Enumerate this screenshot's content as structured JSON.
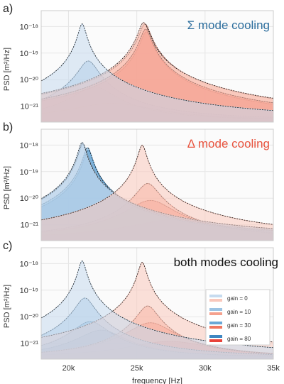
{
  "chart_data": [
    {
      "type": "area",
      "panel_label": "a)",
      "title": "Σ mode cooling",
      "title_color": "#2E6F9E",
      "xlabel": "",
      "ylabel": "PSD [m²/Hz]",
      "xlim": [
        18000,
        35000
      ],
      "ylim_log10": [
        -21.6,
        -17.4
      ],
      "y_scale": "log",
      "grid": true,
      "series": [
        {
          "group": "blue",
          "gain": 0,
          "center": 21000,
          "peak_log10": -17.9,
          "width": 250
        },
        {
          "group": "blue",
          "gain": 10,
          "center": 21450,
          "peak_log10": -19.3,
          "width": 600
        },
        {
          "group": "blue",
          "gain": 30,
          "center": 21900,
          "peak_log10": -20.3,
          "width": 1300
        },
        {
          "group": "blue",
          "gain": 80,
          "center": 23200,
          "peak_log10": -21.0,
          "width": 3000
        },
        {
          "group": "red",
          "gain": 0,
          "center": 25500,
          "peak_log10": -17.85,
          "width": 330
        },
        {
          "group": "red",
          "gain": 10,
          "center": 25600,
          "peak_log10": -17.9,
          "width": 340
        },
        {
          "group": "red",
          "gain": 30,
          "center": 25650,
          "peak_log10": -18.1,
          "width": 340
        },
        {
          "group": "red",
          "gain": 80,
          "center": 25700,
          "peak_log10": -18.2,
          "width": 350
        }
      ]
    },
    {
      "type": "area",
      "panel_label": "b)",
      "title": "Δ mode cooling",
      "title_color": "#E8533E",
      "xlabel": "",
      "ylabel": "PSD [m²/Hz]",
      "xlim": [
        18000,
        35000
      ],
      "ylim_log10": [
        -21.6,
        -17.4
      ],
      "y_scale": "log",
      "grid": true,
      "series": [
        {
          "group": "blue",
          "gain": 0,
          "center": 21000,
          "peak_log10": -17.9,
          "width": 260
        },
        {
          "group": "blue",
          "gain": 10,
          "center": 21050,
          "peak_log10": -17.95,
          "width": 270
        },
        {
          "group": "blue",
          "gain": 30,
          "center": 21400,
          "peak_log10": -18.1,
          "width": 280
        },
        {
          "group": "blue",
          "gain": 80,
          "center": 21450,
          "peak_log10": -18.2,
          "width": 290
        },
        {
          "group": "red",
          "gain": 0,
          "center": 25400,
          "peak_log10": -18.0,
          "width": 260
        },
        {
          "group": "red",
          "gain": 10,
          "center": 25800,
          "peak_log10": -19.45,
          "width": 700
        },
        {
          "group": "red",
          "gain": 30,
          "center": 26000,
          "peak_log10": -20.1,
          "width": 1400
        },
        {
          "group": "red",
          "gain": 80,
          "center": 27900,
          "peak_log10": -20.9,
          "width": 3200
        }
      ]
    },
    {
      "type": "area",
      "panel_label": "c)",
      "title": "both modes cooling",
      "title_color": "#111111",
      "xlabel": "frequency [Hz]",
      "ylabel": "PSD [m²/Hz]",
      "xlim": [
        18000,
        35000
      ],
      "ylim_log10": [
        -21.6,
        -17.4
      ],
      "y_scale": "log",
      "grid": true,
      "x_ticks": [
        "20k",
        "25k",
        "30k",
        "35k"
      ],
      "y_ticks": [
        "10⁻¹⁸",
        "10⁻¹⁹",
        "10⁻²⁰",
        "10⁻²¹"
      ],
      "legend_position": "center-right",
      "legend": [
        "gain = 0",
        "gain = 10",
        "gain = 30",
        "gain = 80"
      ],
      "series": [
        {
          "group": "blue",
          "gain": 0,
          "center": 21000,
          "peak_log10": -17.9,
          "width": 250
        },
        {
          "group": "blue",
          "gain": 10,
          "center": 21200,
          "peak_log10": -19.3,
          "width": 600
        },
        {
          "group": "blue",
          "gain": 30,
          "center": 21600,
          "peak_log10": -20.2,
          "width": 1100
        },
        {
          "group": "blue",
          "gain": 80,
          "center": 22400,
          "peak_log10": -20.55,
          "width": 1500
        },
        {
          "group": "red",
          "gain": 0,
          "center": 25400,
          "peak_log10": -17.95,
          "width": 260
        },
        {
          "group": "red",
          "gain": 10,
          "center": 25800,
          "peak_log10": -19.6,
          "width": 650
        },
        {
          "group": "red",
          "gain": 30,
          "center": 26000,
          "peak_log10": -20.25,
          "width": 1400
        },
        {
          "group": "red",
          "gain": 80,
          "center": 27400,
          "peak_log10": -21.05,
          "width": 3000
        }
      ]
    }
  ],
  "palette": {
    "blue": [
      "#C6DBEF",
      "#9CC3E3",
      "#6AA7D6",
      "#3E87C2"
    ],
    "red": [
      "#F9C8BC",
      "#F5A18E",
      "#F07660",
      "#E8433A"
    ]
  }
}
